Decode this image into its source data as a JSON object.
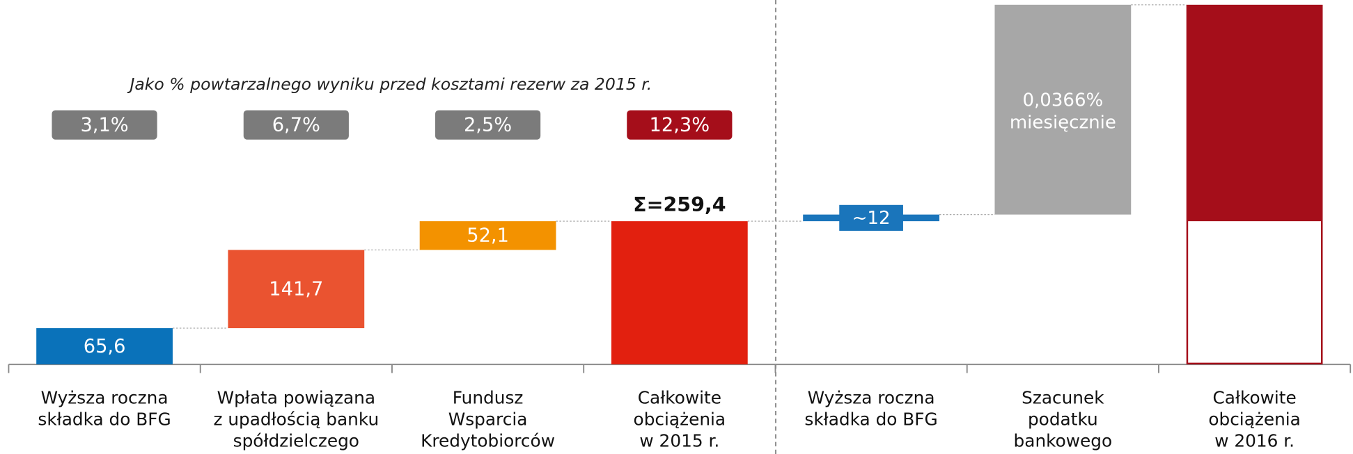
{
  "chart_data": {
    "type": "waterfall",
    "subtitle": "Jako % powtarzalnego wyniku przed kosztami rezerw za 2015 r.",
    "categories": [
      "Wyższa roczna\nskładka do BFG",
      "Wpłata powiązana\nz upadłością banku\nspółdzielczego",
      "Fundusz\nWsparcia\nKredytobiorców",
      "Całkowite\nobciążenia\nw 2015 r.",
      "Wyższa roczna\nskładka do BFG",
      "Szacunek\npodatku\nbankowego",
      "Całkowite\nobciążenia\nw 2016 r."
    ],
    "values": [
      65.6,
      141.7,
      52.1,
      259.4,
      12,
      380,
      651.4
    ],
    "value_labels": [
      "65,6",
      "141,7",
      "52,1",
      "Σ=259,4",
      "~12",
      null,
      null
    ],
    "totals": [
      3,
      6
    ],
    "colors": [
      "#0a72ba",
      "#ea5330",
      "#f39200",
      "#e2200f",
      "#1a75bb",
      "#a7a7a7",
      "#a50e1a"
    ],
    "annotation": [
      "0,0366%",
      "miesięcznie"
    ],
    "shares": {
      "values": [
        3.1,
        6.7,
        2.5,
        12.3
      ],
      "labels": [
        "3,1%",
        "6,7%",
        "2,5%",
        "12,3%"
      ],
      "colors": [
        "#7b7b7b",
        "#7b7b7b",
        "#7b7b7b",
        "#a50e1a"
      ]
    },
    "ylim": [
      0,
      660
    ]
  }
}
